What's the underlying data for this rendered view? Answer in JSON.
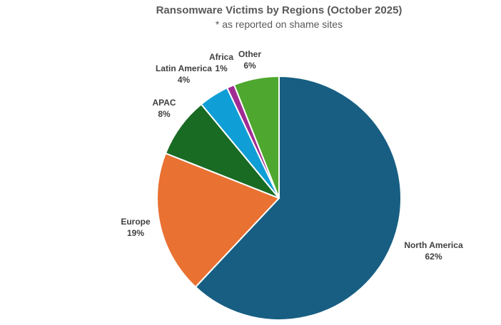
{
  "chart_data": {
    "type": "pie",
    "title": "Ransomware Victims by Regions (October 2025)",
    "subtitle": "* as reported on shame sites",
    "slices": [
      {
        "label": "North America",
        "value": 62,
        "pct": "62%",
        "color": "#175E82"
      },
      {
        "label": "Europe",
        "value": 19,
        "pct": "19%",
        "color": "#E97132"
      },
      {
        "label": "APAC",
        "value": 8,
        "pct": "8%",
        "color": "#196B24"
      },
      {
        "label": "Latin America",
        "value": 4,
        "pct": "4%",
        "color": "#0F9ED5"
      },
      {
        "label": "Africa",
        "value": 1,
        "pct": "1%",
        "color": "#A02B93"
      },
      {
        "label": "Other",
        "value": 6,
        "pct": "6%",
        "color": "#4EA72E"
      }
    ],
    "start_angle": "12 o'clock, clockwise",
    "legend": "none (data labels outside)"
  }
}
